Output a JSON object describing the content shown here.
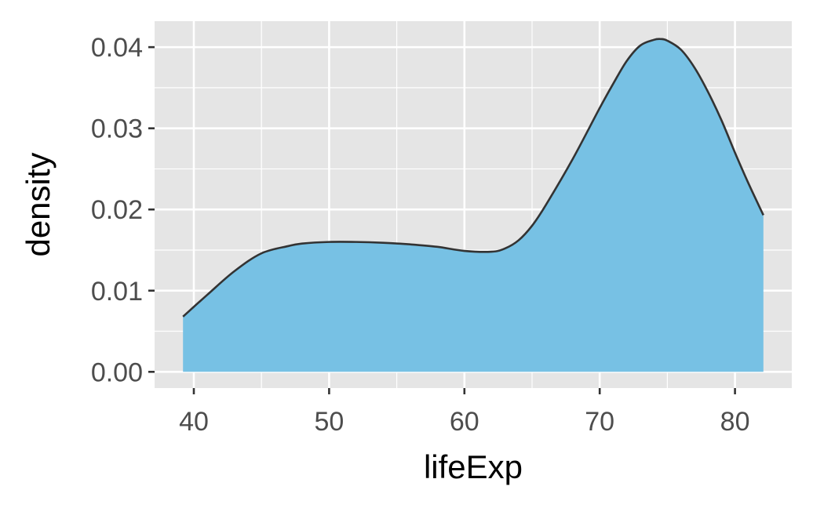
{
  "chart_data": {
    "type": "area",
    "title": "",
    "xlabel": "lifeExp",
    "ylabel": "density",
    "xlim": [
      37.1,
      84.2
    ],
    "ylim": [
      -0.002,
      0.0432
    ],
    "x_ticks": [
      40,
      50,
      60,
      70,
      80
    ],
    "x_tick_labels": [
      "40",
      "50",
      "60",
      "70",
      "80"
    ],
    "y_ticks": [
      0,
      0.01,
      0.02,
      0.03,
      0.04
    ],
    "y_tick_labels": [
      "0.00",
      "0.01",
      "0.02",
      "0.03",
      "0.04"
    ],
    "grid": true,
    "legend": "none",
    "colors": {
      "fill": "#77c1e4",
      "outline": "#333333",
      "panel": "#e5e5e5",
      "grid": "#ffffff"
    },
    "series": [
      {
        "x": [
          39.2,
          41,
          43,
          45,
          47,
          48,
          50,
          52,
          54,
          56,
          58,
          60,
          62,
          63,
          64,
          65,
          66,
          68,
          70,
          71,
          72,
          73,
          74,
          74.5,
          75,
          76,
          77,
          78,
          79,
          80,
          81,
          82.1
        ],
        "y": [
          0.0068,
          0.0095,
          0.0124,
          0.0146,
          0.0155,
          0.0158,
          0.016,
          0.016,
          0.0159,
          0.0157,
          0.0154,
          0.0149,
          0.0148,
          0.0152,
          0.0162,
          0.018,
          0.0205,
          0.0262,
          0.0325,
          0.0355,
          0.0383,
          0.0402,
          0.0409,
          0.041,
          0.0408,
          0.0397,
          0.0375,
          0.0345,
          0.031,
          0.027,
          0.0232,
          0.0193
        ]
      }
    ]
  }
}
